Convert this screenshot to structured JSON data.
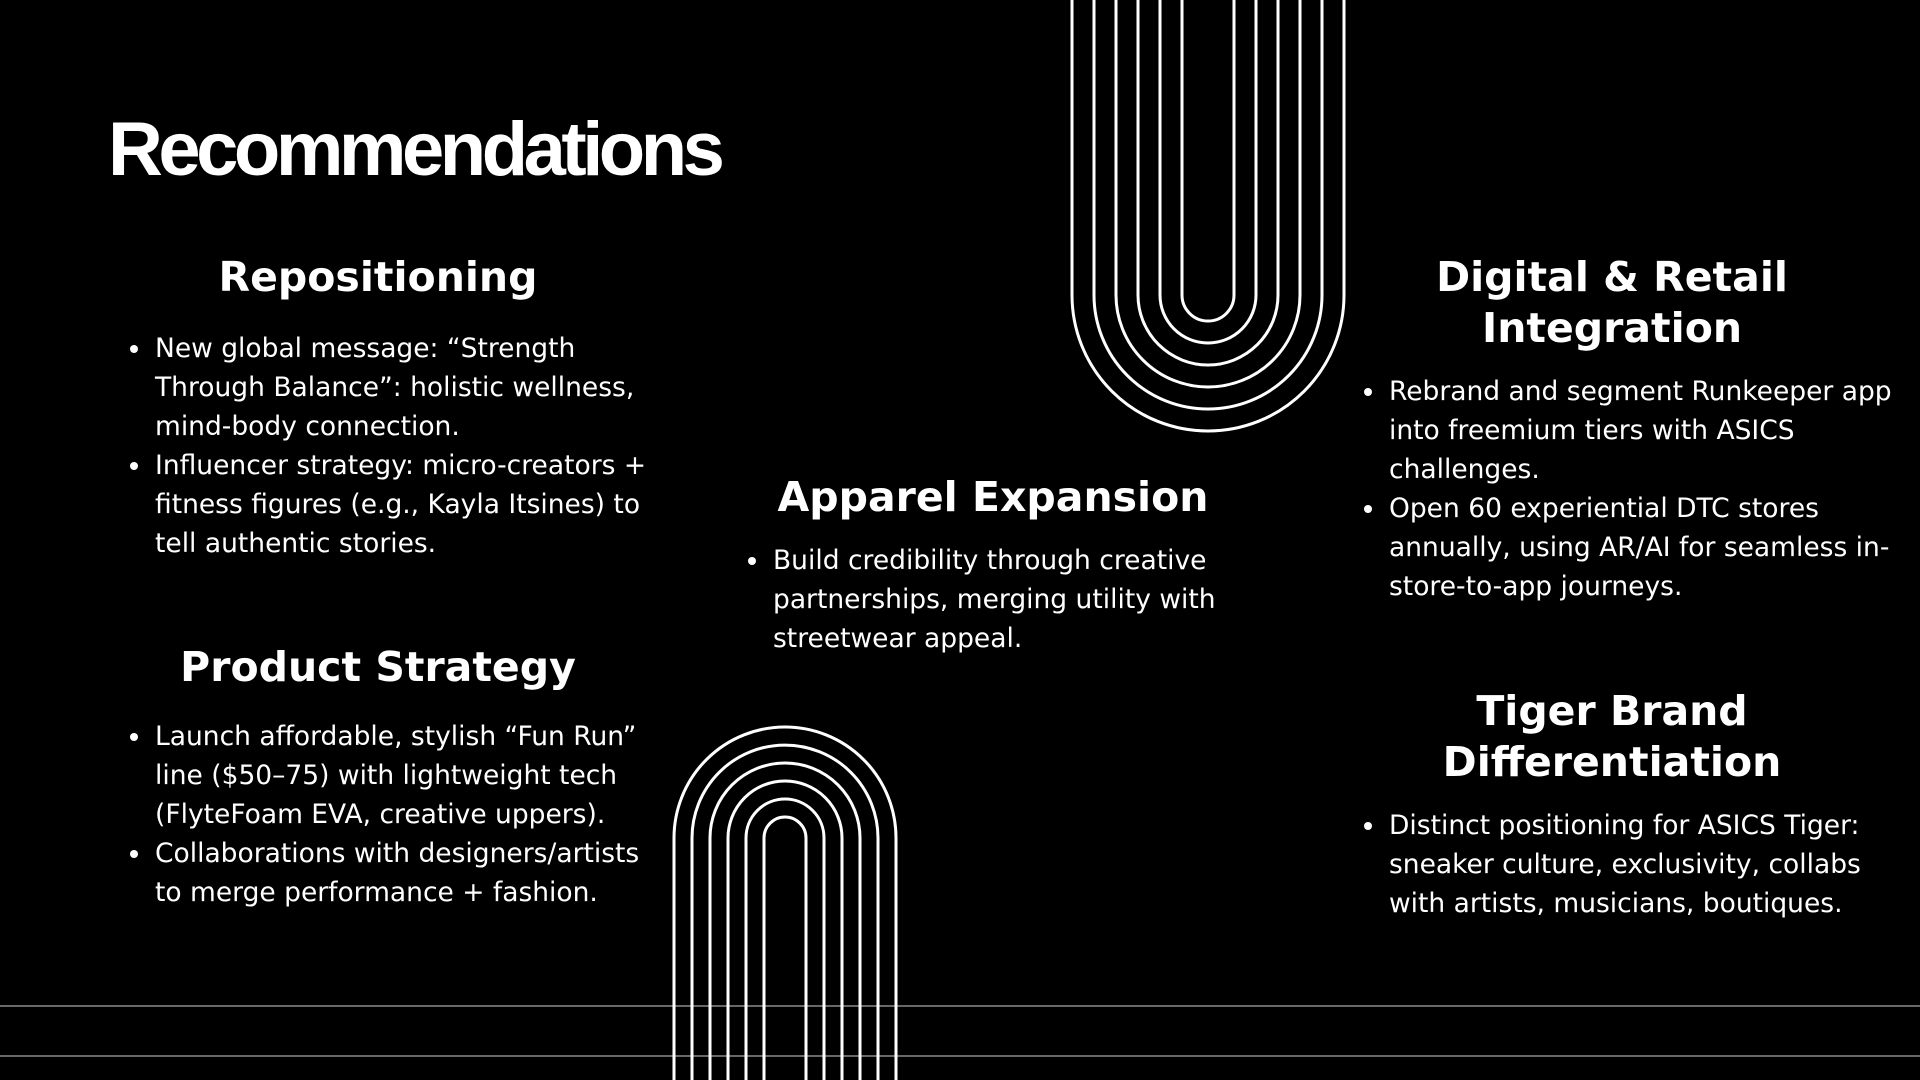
{
  "slide": {
    "title": "Recommendations",
    "sections": {
      "repositioning": {
        "heading": "Repositioning",
        "bullets": [
          "New global message: “Strength Through Balance”: holistic wellness, mind-body connection.",
          "Influencer strategy: micro-creators + fitness figures (e.g., Kayla Itsines) to tell authentic stories."
        ]
      },
      "product_strategy": {
        "heading": "Product Strategy",
        "bullets": [
          "Launch affordable, stylish “Fun Run” line ($50–75) with lightweight tech (FlyteFoam EVA, creative uppers).",
          "Collaborations with designers/artists to merge performance + fashion."
        ]
      },
      "apparel_expansion": {
        "heading": "Apparel Expansion",
        "bullets": [
          "Build credibility through creative partnerships, merging utility with streetwear appeal."
        ]
      },
      "digital_retail": {
        "heading": "Digital & Retail Integration",
        "bullets": [
          "Rebrand and segment Runkeeper app into freemium tiers with ASICS challenges.",
          "Open 60 experiential DTC stores annually, using AR/AI for seamless in-store-to-app journeys."
        ]
      },
      "tiger_brand": {
        "heading": "Tiger Brand Differentiation",
        "bullets": [
          "Distinct positioning for ASICS Tiger: sneaker culture, exclusivity, collabs with artists, musicians, boutiques."
        ]
      }
    }
  },
  "colors": {
    "background": "#000000",
    "foreground": "#ffffff",
    "rule_lines": "#8a8a8a"
  },
  "decorations": [
    "nested-arch-top",
    "nested-arch-bottom",
    "horizontal-rule-lines"
  ]
}
